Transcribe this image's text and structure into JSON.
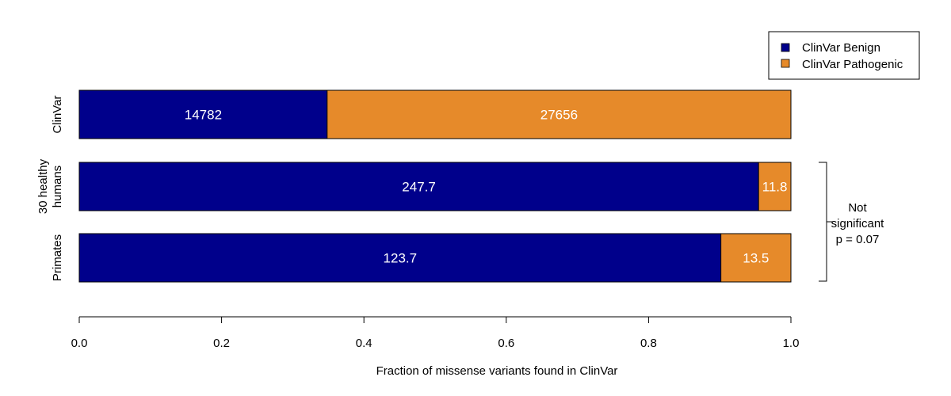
{
  "chart_data": {
    "type": "bar",
    "orientation": "horizontal",
    "stacked": true,
    "normalized": true,
    "categories": [
      "ClinVar",
      "30 healthy humans",
      "Primates"
    ],
    "category_label_lines": [
      [
        "ClinVar"
      ],
      [
        "30 healthy",
        "humans"
      ],
      [
        "Primates"
      ]
    ],
    "series": [
      {
        "name": "ClinVar Benign",
        "color": "#00008B",
        "values": [
          14782,
          247.7,
          123.7
        ],
        "labels": [
          "14782",
          "247.7",
          "123.7"
        ]
      },
      {
        "name": "ClinVar Pathogenic",
        "color": "#E68A2A",
        "values": [
          27656,
          11.8,
          13.5
        ],
        "labels": [
          "27656",
          "11.8",
          "13.5"
        ]
      }
    ],
    "xlabel": "Fraction of missense variants found in ClinVar",
    "ylabel": "",
    "xlim": [
      0,
      1
    ],
    "xticks": [
      0,
      0.2,
      0.4,
      0.6,
      0.8,
      1
    ],
    "xtick_labels": [
      "0.0",
      "0.2",
      "0.4",
      "0.6",
      "0.8",
      "1.0"
    ],
    "grid": false,
    "legend": "top-right",
    "annotation": {
      "lines": [
        "Not",
        "significant",
        "p = 0.07"
      ],
      "spans": [
        "30 healthy humans",
        "Primates"
      ]
    }
  }
}
